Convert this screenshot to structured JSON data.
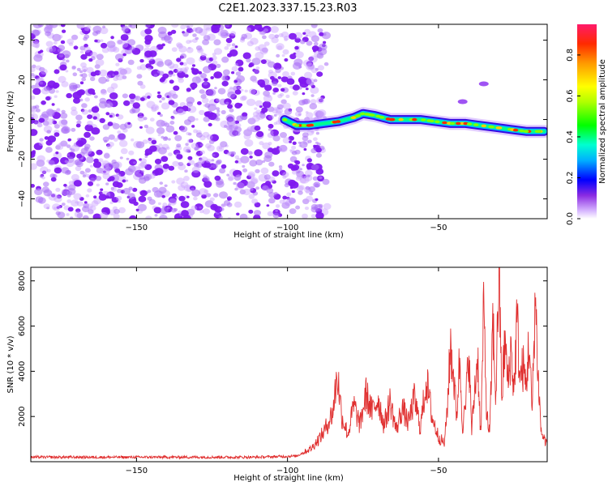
{
  "title": "C2E1.2023.337.15.23.R03",
  "colors": {
    "weak": "#c9a0ff",
    "mid": "#7f19ef",
    "snr_line": "#e03030"
  },
  "chart_data": [
    {
      "type": "heatmap",
      "xlabel": "Height of straight line (km)",
      "ylabel": "Frequency (Hz)",
      "xlim": [
        -185,
        -14
      ],
      "ylim": [
        -50,
        48
      ],
      "x_ticks": [
        -150,
        -100,
        -50
      ],
      "y_ticks": [
        -40,
        -20,
        0,
        20,
        40
      ],
      "noise_region_x": [
        -185,
        -90
      ],
      "signal_track": {
        "x": [
          -101,
          -97,
          -93,
          -88,
          -83,
          -78,
          -75,
          -71,
          -66,
          -61,
          -56,
          -51,
          -46,
          -41,
          -36,
          -31,
          -26,
          -21,
          -17,
          -15
        ],
        "y": [
          0,
          -3,
          -3,
          -2,
          -1,
          1,
          3,
          2,
          0,
          0,
          0,
          -1,
          -2,
          -2,
          -3,
          -4,
          -5,
          -6,
          -6,
          -6
        ]
      },
      "extra_blobs": [
        {
          "x": -35,
          "y": 18
        },
        {
          "x": -42,
          "y": 9
        }
      ],
      "colorbar": {
        "label": "Normalized spectral amplitude",
        "range": [
          0,
          0.95
        ],
        "ticks": [
          0.0,
          0.2,
          0.4,
          0.6,
          0.8
        ]
      }
    },
    {
      "type": "line",
      "xlabel": "Height of straight line (km)",
      "ylabel": "SNR (10 * v/v)",
      "xlim": [
        -185,
        -14
      ],
      "ylim": [
        0,
        8600
      ],
      "x_ticks": [
        -150,
        -100,
        -50
      ],
      "y_ticks": [
        2000,
        4000,
        6000,
        8000
      ],
      "series": [
        {
          "x": [
            -185,
            -160,
            -130,
            -110,
            -97,
            -92,
            -88,
            -85,
            -83.5,
            -82,
            -80,
            -78,
            -76,
            -74,
            -72,
            -70,
            -68,
            -66,
            -64,
            -62,
            -60,
            -58,
            -56,
            -54,
            -52,
            -50,
            -48,
            -47,
            -46,
            -45,
            -44,
            -43,
            -42,
            -41,
            -40,
            -39,
            -38,
            -37,
            -36,
            -35,
            -34,
            -33,
            -32,
            -31,
            -30,
            -29,
            -28,
            -27,
            -26,
            -25,
            -24,
            -23,
            -22,
            -21,
            -20,
            -19,
            -18,
            -17,
            -16,
            -15,
            -14
          ],
          "y": [
            200,
            200,
            200,
            200,
            250,
            600,
            1300,
            2200,
            3900,
            2000,
            1200,
            2500,
            1600,
            3000,
            2200,
            2800,
            1600,
            2700,
            1400,
            2400,
            1700,
            2800,
            1500,
            3600,
            1900,
            1100,
            800,
            2600,
            5200,
            3800,
            2000,
            4600,
            1600,
            2400,
            5000,
            1400,
            3200,
            4700,
            1000,
            6800,
            2000,
            1200,
            6200,
            2800,
            8600,
            2800,
            5400,
            3400,
            5000,
            3100,
            6400,
            3600,
            4200,
            3300,
            5400,
            2100,
            7400,
            3800,
            1300,
            1000,
            800
          ]
        }
      ]
    }
  ]
}
